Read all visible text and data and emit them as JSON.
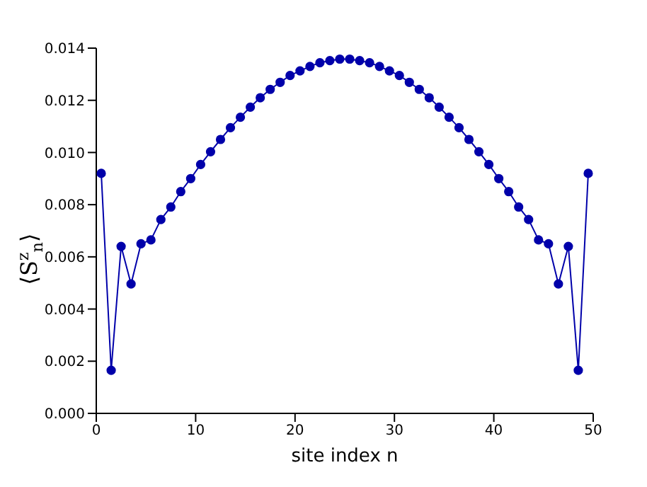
{
  "chart_data": {
    "type": "line",
    "xlabel": "site index  n",
    "ylabel": "⟨S$^{z}$$_{n}$⟩",
    "x": [
      0.5,
      1.5,
      2.5,
      3.5,
      4.5,
      5.5,
      6.5,
      7.5,
      8.5,
      9.5,
      10.5,
      11.5,
      12.5,
      13.5,
      14.5,
      15.5,
      16.5,
      17.5,
      18.5,
      19.5,
      20.5,
      21.5,
      22.5,
      23.5,
      24.5,
      25.5,
      26.5,
      27.5,
      28.5,
      29.5,
      30.5,
      31.5,
      32.5,
      33.5,
      34.5,
      35.5,
      36.5,
      37.5,
      38.5,
      39.5,
      40.5,
      41.5,
      42.5,
      43.5,
      44.5,
      45.5,
      46.5,
      47.5,
      48.5,
      49.5
    ],
    "series": [
      {
        "color": "#0000aa",
        "values": [
          0.0092,
          0.00165,
          0.0064,
          0.00496,
          0.0065,
          0.00665,
          0.00743,
          0.00791,
          0.0085,
          0.009,
          0.00954,
          0.01003,
          0.0105,
          0.01095,
          0.01135,
          0.01174,
          0.0121,
          0.01242,
          0.01269,
          0.01295,
          0.01313,
          0.0133,
          0.01344,
          0.01352,
          0.01358,
          0.01358,
          0.01352,
          0.01344,
          0.0133,
          0.01313,
          0.01295,
          0.01269,
          0.01242,
          0.0121,
          0.01174,
          0.01135,
          0.01095,
          0.0105,
          0.01003,
          0.00954,
          0.009,
          0.0085,
          0.00791,
          0.00743,
          0.00665,
          0.0065,
          0.00496,
          0.0064,
          0.00165,
          0.0092
        ]
      }
    ],
    "xlim": [
      0,
      50
    ],
    "xticks": [
      0,
      10,
      20,
      30,
      40,
      50
    ],
    "ylim": [
      0,
      0.014
    ],
    "yticks": [
      {
        "value": 0,
        "label": "0.000"
      },
      {
        "value": 0.002,
        "label": "0.002"
      },
      {
        "value": 0.004,
        "label": "0.004"
      },
      {
        "value": 0.006,
        "label": "0.006"
      },
      {
        "value": 0.008,
        "label": "0.008"
      },
      {
        "value": 0.01,
        "label": "0.010"
      },
      {
        "value": 0.012,
        "label": "0.012"
      },
      {
        "value": 0.014,
        "label": "0.014"
      }
    ],
    "grid": false,
    "marker": "circle",
    "line_style": "solid"
  }
}
